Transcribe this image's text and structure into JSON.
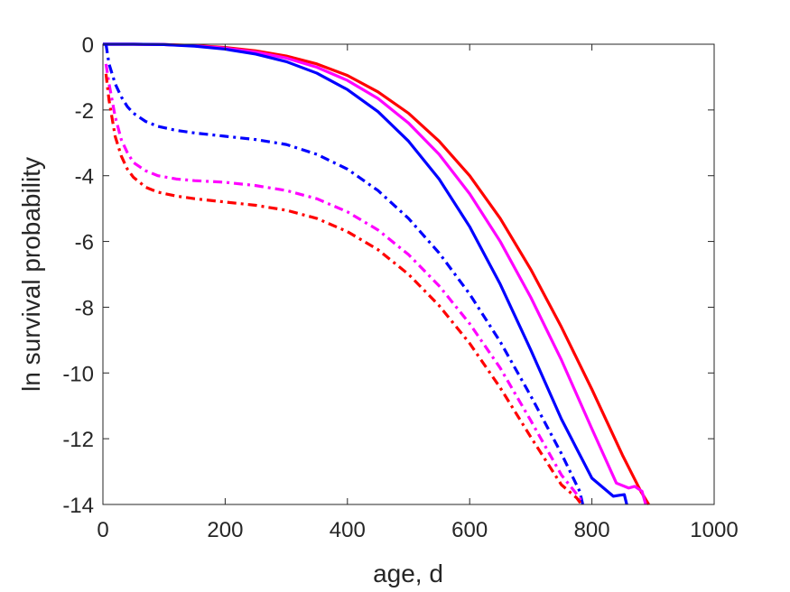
{
  "chart_data": {
    "type": "line",
    "title": "",
    "xlabel": "age, d",
    "ylabel": "ln survival probability",
    "xlim": [
      0,
      1000
    ],
    "ylim": [
      -14,
      0
    ],
    "xticks": [
      0,
      200,
      400,
      600,
      800,
      1000
    ],
    "yticks": [
      0,
      -2,
      -4,
      -6,
      -8,
      -10,
      -12,
      -14
    ],
    "grid": false,
    "legend": "none",
    "series": [
      {
        "color": "#ff0000",
        "style": "solid",
        "x": [
          0,
          50,
          100,
          150,
          200,
          250,
          300,
          350,
          400,
          450,
          500,
          550,
          600,
          650,
          700,
          750,
          800,
          850,
          880,
          893
        ],
        "y": [
          0,
          0,
          -0.01,
          -0.04,
          -0.1,
          -0.2,
          -0.36,
          -0.6,
          -0.95,
          -1.45,
          -2.1,
          -2.95,
          -4.0,
          -5.3,
          -6.85,
          -8.6,
          -10.5,
          -12.5,
          -13.6,
          -14.0
        ]
      },
      {
        "color": "#ff00ff",
        "style": "solid",
        "x": [
          0,
          50,
          100,
          150,
          200,
          250,
          300,
          350,
          400,
          450,
          500,
          550,
          600,
          650,
          700,
          750,
          800,
          840,
          860,
          870,
          882,
          888
        ],
        "y": [
          0,
          0,
          -0.01,
          -0.05,
          -0.12,
          -0.24,
          -0.42,
          -0.7,
          -1.1,
          -1.65,
          -2.4,
          -3.35,
          -4.55,
          -6.0,
          -7.7,
          -9.6,
          -11.7,
          -13.35,
          -13.5,
          -13.45,
          -13.6,
          -14.0
        ]
      },
      {
        "color": "#0000ff",
        "style": "solid",
        "x": [
          0,
          50,
          100,
          150,
          200,
          250,
          300,
          350,
          400,
          450,
          500,
          550,
          600,
          650,
          700,
          750,
          800,
          835,
          845,
          853,
          857
        ],
        "y": [
          0,
          0,
          -0.01,
          -0.06,
          -0.15,
          -0.3,
          -0.53,
          -0.88,
          -1.38,
          -2.05,
          -2.95,
          -4.1,
          -5.55,
          -7.3,
          -9.3,
          -11.4,
          -13.2,
          -13.75,
          -13.72,
          -13.7,
          -14.0
        ]
      },
      {
        "color": "#0000ff",
        "style": "dashdot",
        "x": [
          5,
          10,
          20,
          30,
          40,
          50,
          70,
          90,
          120,
          150,
          200,
          250,
          300,
          350,
          400,
          450,
          500,
          550,
          600,
          650,
          700,
          750,
          780,
          785
        ],
        "y": [
          0,
          -0.6,
          -1.2,
          -1.6,
          -1.9,
          -2.1,
          -2.35,
          -2.5,
          -2.62,
          -2.7,
          -2.8,
          -2.9,
          -3.05,
          -3.35,
          -3.8,
          -4.45,
          -5.3,
          -6.35,
          -7.6,
          -9.05,
          -10.7,
          -12.45,
          -13.6,
          -14.0
        ]
      },
      {
        "color": "#ff00ff",
        "style": "dashdot",
        "x": [
          5,
          10,
          20,
          30,
          40,
          50,
          70,
          90,
          120,
          150,
          200,
          250,
          300,
          350,
          400,
          450,
          500,
          550,
          600,
          650,
          700,
          750,
          780,
          785
        ],
        "y": [
          -0.6,
          -1.2,
          -2.2,
          -2.9,
          -3.3,
          -3.6,
          -3.85,
          -4.0,
          -4.1,
          -4.15,
          -4.2,
          -4.3,
          -4.45,
          -4.7,
          -5.1,
          -5.65,
          -6.4,
          -7.35,
          -8.5,
          -9.85,
          -11.45,
          -13.1,
          -13.8,
          -14.0
        ]
      },
      {
        "color": "#ff0000",
        "style": "dashdot",
        "x": [
          5,
          10,
          20,
          30,
          40,
          50,
          70,
          90,
          120,
          150,
          200,
          250,
          300,
          350,
          400,
          450,
          500,
          550,
          600,
          650,
          700,
          750,
          775,
          783
        ],
        "y": [
          -0.9,
          -1.7,
          -2.8,
          -3.4,
          -3.8,
          -4.05,
          -4.35,
          -4.5,
          -4.62,
          -4.7,
          -4.8,
          -4.9,
          -5.05,
          -5.3,
          -5.7,
          -6.25,
          -7.0,
          -7.95,
          -9.1,
          -10.45,
          -11.95,
          -13.4,
          -13.8,
          -14.0
        ]
      }
    ]
  }
}
